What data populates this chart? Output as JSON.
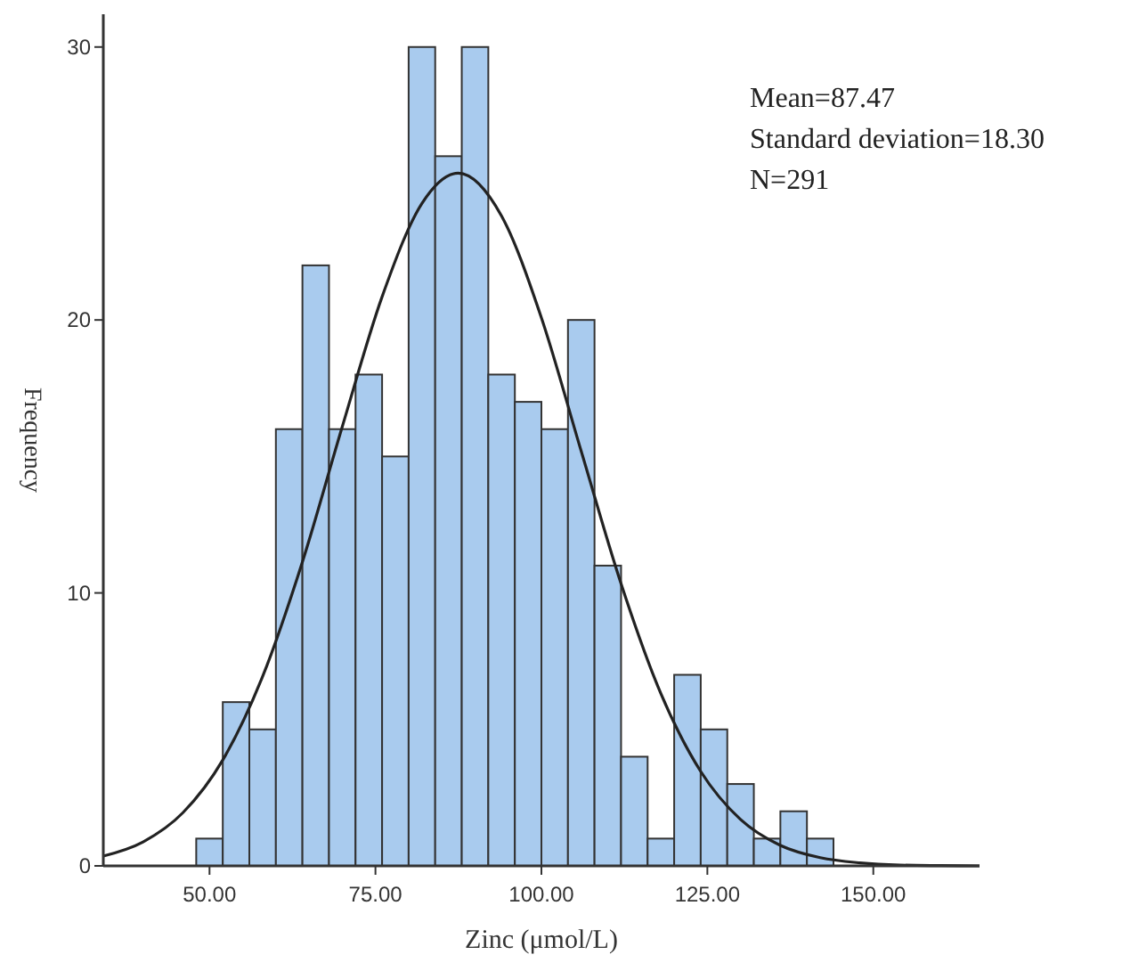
{
  "chart_data": {
    "type": "histogram",
    "xlabel": "Zinc (μmol/L)",
    "ylabel": "Frequency",
    "bins": [
      48,
      52,
      56,
      60,
      64,
      68,
      72,
      76,
      80,
      84,
      88,
      92,
      96,
      100,
      104,
      108,
      112,
      116,
      120,
      124,
      128,
      132,
      136,
      140,
      144
    ],
    "values": [
      1,
      6,
      5,
      16,
      22,
      16,
      18,
      15,
      30,
      26,
      30,
      18,
      17,
      16,
      20,
      11,
      4,
      1,
      7,
      5,
      3,
      1,
      2,
      1
    ],
    "color": "#a9cbee",
    "series": [
      {
        "type": "line",
        "color": "#222222",
        "x": [
          34,
          40,
          46,
          52,
          58,
          64,
          70,
          76,
          82,
          87.47,
          94,
          100,
          106,
          112,
          118,
          124,
          130,
          136,
          142,
          148,
          154,
          160,
          166
        ],
        "values": [
          0.36,
          0.88,
          1.95,
          3.88,
          6.94,
          11.14,
          16.09,
          20.85,
          24.27,
          25.38,
          23.81,
          20.08,
          15.19,
          10.34,
          6.31,
          3.46,
          1.7,
          0.75,
          0.3,
          0.11,
          0.03,
          0.01,
          0
        ]
      }
    ],
    "xlim": [
      34,
      166
    ],
    "xticks": [
      {
        "value": 50,
        "label": "50.00"
      },
      {
        "value": 75,
        "label": "75.00"
      },
      {
        "value": 100,
        "label": "100.00"
      },
      {
        "value": 125,
        "label": "125.00"
      },
      {
        "value": 150,
        "label": "150.00"
      }
    ],
    "ylim": [
      0,
      31.2
    ],
    "yticks": [
      0,
      10,
      20,
      30
    ],
    "grid": false,
    "annotations": [
      "Mean=87.47",
      "Standard deviation=18.30",
      "N=291"
    ]
  }
}
